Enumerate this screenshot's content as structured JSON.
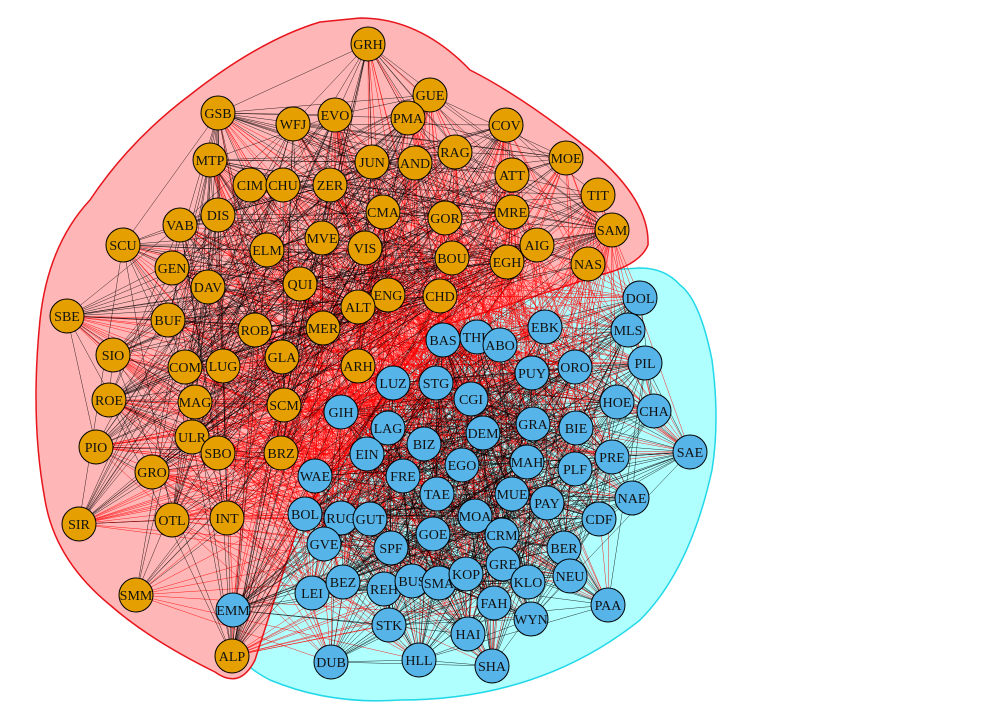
{
  "diagram": {
    "type": "network-graph",
    "colors": {
      "group_a_fill": "#E69F00",
      "group_b_fill": "#56B4E9",
      "group_a_hull": "#FFB6B6",
      "group_a_hull_stroke": "#E8141C",
      "group_b_hull": "#B0FFFF",
      "group_b_hull_stroke": "#22D8E8",
      "edge_within": "#000000",
      "edge_between": "#FF0000",
      "node_stroke": "#000000"
    },
    "groups": [
      {
        "name": "group-a",
        "nodes": [
          "GRH",
          "GUE",
          "GSB",
          "EVO",
          "WFJ",
          "PMA",
          "COV",
          "MOE",
          "RAG",
          "JUN",
          "AND",
          "MTP",
          "CIM",
          "CHU",
          "ZER",
          "ATT",
          "TIT",
          "SCU",
          "VAB",
          "DIS",
          "CMA",
          "GOR",
          "MRE",
          "SAM",
          "GEN",
          "ELM",
          "MVE",
          "VIS",
          "BOU",
          "EGH",
          "AIG",
          "NAS",
          "DAV",
          "QUI",
          "ENG",
          "CHD",
          "SBE",
          "BUF",
          "ALT",
          "MER",
          "SIO",
          "ROB",
          "LUG",
          "GLA",
          "COM",
          "ARH",
          "ROE",
          "MAG",
          "SCM",
          "PIO",
          "ULR",
          "SBO",
          "BRZ",
          "GRO",
          "SIR",
          "OTL",
          "INT",
          "SMM",
          "ALP"
        ]
      },
      {
        "name": "group-b",
        "nodes": [
          "DOL",
          "EBK",
          "MLS",
          "BAS",
          "THU",
          "ABO",
          "PIL",
          "PUY",
          "ORO",
          "LUZ",
          "STG",
          "CGI",
          "HOE",
          "CHA",
          "GIH",
          "LAG",
          "GRA",
          "BIE",
          "SAE",
          "DEM",
          "BIZ",
          "EIN",
          "PRE",
          "MAH",
          "EGO",
          "FRE",
          "PLF",
          "WAE",
          "TAE",
          "MUE",
          "PAY",
          "NAE",
          "BOL",
          "RUG",
          "GUT",
          "MOA",
          "CDF",
          "GVE",
          "CRM",
          "SPF",
          "GOE",
          "BER",
          "GRE",
          "NEU",
          "LEI",
          "BEZ",
          "REH",
          "BUS",
          "SMA",
          "KOP",
          "KLO",
          "FAH",
          "PAA",
          "WYN",
          "EMM",
          "STK",
          "HAI",
          "DUB",
          "HLL",
          "SHA"
        ]
      }
    ]
  }
}
